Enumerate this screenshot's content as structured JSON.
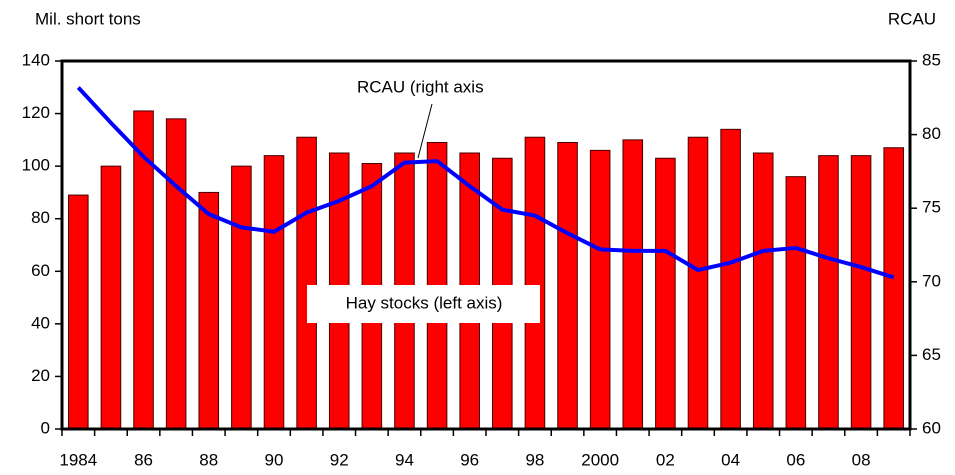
{
  "chart_data": {
    "type": "bar",
    "y_label": "Mil. short tons",
    "y2_label": "RCAU",
    "annotations": [
      "RCAU (right axis",
      "Hay stocks (left axis)"
    ],
    "categories": [
      "1984",
      null,
      "86",
      null,
      "88",
      null,
      "90",
      null,
      "92",
      null,
      "94",
      null,
      "96",
      null,
      "98",
      null,
      "2000",
      null,
      "02",
      null,
      "04",
      null,
      "06",
      null,
      "08",
      null
    ],
    "series": [
      {
        "name": "Hay stocks",
        "type": "bar",
        "axis": "y",
        "color": "#ff0000",
        "values": [
          89,
          100,
          121,
          118,
          90,
          100,
          104,
          111,
          105,
          101,
          105,
          109,
          105,
          103,
          111,
          109,
          106,
          110,
          103,
          111,
          114,
          105,
          96,
          104,
          104,
          107
        ]
      },
      {
        "name": "RCAU",
        "type": "line",
        "axis": "y2",
        "color": "#0000ff",
        "values": [
          83.2,
          80.8,
          78.5,
          76.5,
          74.6,
          73.7,
          73.4,
          74.7,
          75.5,
          76.5,
          78.1,
          78.2,
          76.5,
          74.9,
          74.5,
          73.3,
          72.2,
          72.1,
          72.1,
          70.8,
          71.3,
          72.1,
          72.3,
          71.6,
          71.0,
          70.3
        ]
      }
    ],
    "ylim": [
      0,
      140
    ],
    "yticks": [
      0,
      20,
      40,
      60,
      80,
      100,
      120,
      140
    ],
    "y2lim": [
      60,
      85
    ],
    "y2ticks": [
      60,
      65,
      70,
      75,
      80,
      85
    ]
  }
}
